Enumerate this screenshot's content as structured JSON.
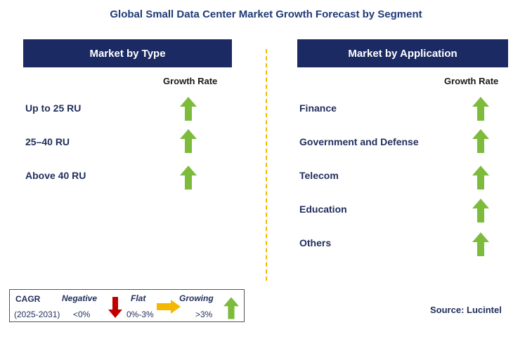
{
  "title": "Global Small Data Center Market Growth Forecast by Segment",
  "left_panel": {
    "header": "Market by Type",
    "growth_rate_label": "Growth Rate",
    "rows": [
      {
        "label": "Up to 25 RU",
        "trend": "growing"
      },
      {
        "label": "25–40 RU",
        "trend": "growing"
      },
      {
        "label": "Above 40 RU",
        "trend": "growing"
      }
    ]
  },
  "right_panel": {
    "header": "Market by Application",
    "growth_rate_label": "Growth Rate",
    "rows": [
      {
        "label": "Finance",
        "trend": "growing"
      },
      {
        "label": "Government and Defense",
        "trend": "growing"
      },
      {
        "label": "Telecom",
        "trend": "growing"
      },
      {
        "label": "Education",
        "trend": "growing"
      },
      {
        "label": "Others",
        "trend": "growing"
      }
    ]
  },
  "legend": {
    "cagr_label": "CAGR",
    "period": "(2025-2031)",
    "negative_label": "Negative",
    "negative_range": "<0%",
    "flat_label": "Flat",
    "flat_range": "0%-3%",
    "growing_label": "Growing",
    "growing_range": ">3%"
  },
  "source": "Source: Lucintel",
  "colors": {
    "header_bg": "#1b2a63",
    "growing": "#7dbb3c",
    "negative": "#c00000",
    "flat": "#f5b800",
    "divider": "#f5b800"
  }
}
